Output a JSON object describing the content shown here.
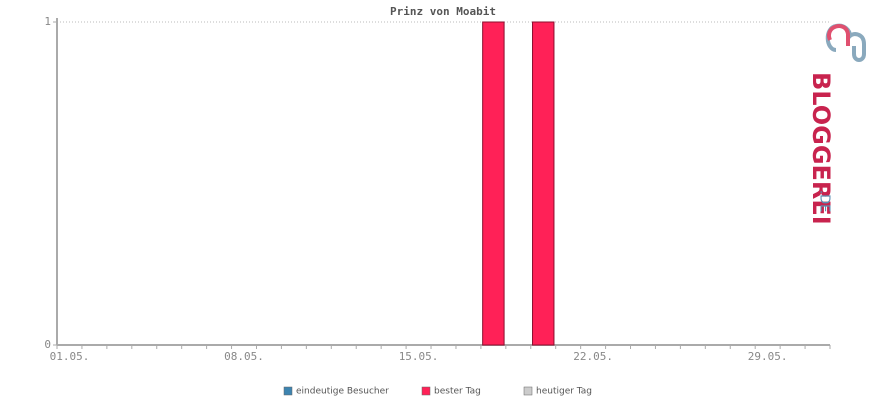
{
  "chart_data": {
    "type": "bar",
    "title": "Prinz von Moabit",
    "categories": [
      "01.05.",
      null,
      null,
      null,
      null,
      null,
      null,
      "08.05.",
      null,
      null,
      null,
      null,
      null,
      null,
      "15.05.",
      null,
      null,
      null,
      null,
      null,
      null,
      "22.05.",
      null,
      null,
      null,
      null,
      null,
      null,
      "29.05.",
      null,
      null
    ],
    "series": [
      {
        "name": "eindeutige Besucher",
        "color": "#3d84b0",
        "values": [
          0,
          0,
          0,
          0,
          0,
          0,
          0,
          0,
          0,
          0,
          0,
          0,
          0,
          0,
          0,
          0,
          0,
          0,
          0,
          0,
          0,
          0,
          0,
          0,
          0,
          0,
          0,
          0,
          0,
          0,
          0
        ]
      },
      {
        "name": "bester Tag",
        "color": "#ff2157",
        "values": [
          0,
          0,
          0,
          0,
          0,
          0,
          0,
          0,
          0,
          0,
          0,
          0,
          0,
          0,
          0,
          0,
          0,
          1,
          0,
          1,
          0,
          0,
          0,
          0,
          0,
          0,
          0,
          0,
          0,
          0,
          0
        ]
      },
      {
        "name": "heutiger Tag",
        "color": "#cccccc",
        "values": [
          0,
          0,
          0,
          0,
          0,
          0,
          0,
          0,
          0,
          0,
          0,
          0,
          0,
          0,
          0,
          0,
          0,
          0,
          0,
          0,
          0,
          0,
          0,
          0,
          0,
          0,
          0,
          0,
          0,
          0,
          0
        ]
      }
    ],
    "ylim": [
      0,
      1
    ],
    "yticks": [
      0,
      1
    ],
    "grid": true
  },
  "logo": "BLOGGEREI",
  "logo_suffix": ".DE"
}
